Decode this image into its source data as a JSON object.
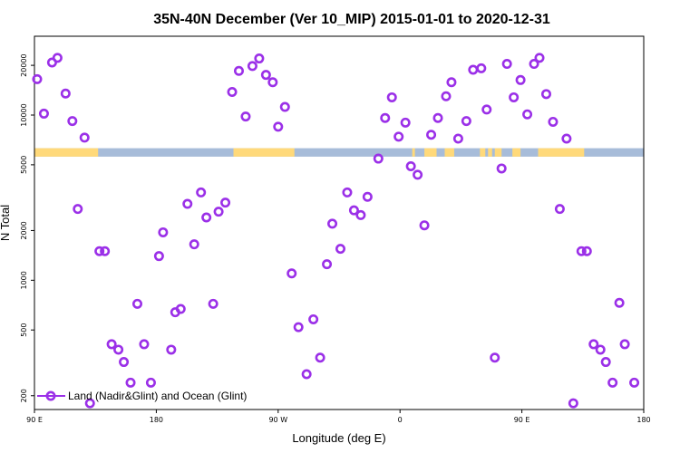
{
  "chart_data": {
    "type": "scatter",
    "title": "35N-40N December (Ver 10_MIP)   2015-01-01 to 2020-12-31",
    "xlabel": "Longitude (deg E)",
    "ylabel": "N Total",
    "xlim": [
      90,
      540
    ],
    "ylim_log": [
      165,
      30000
    ],
    "x_ticks": [
      {
        "value": 90,
        "label": "90 E"
      },
      {
        "value": 180,
        "label": "180"
      },
      {
        "value": 270,
        "label": "90 W"
      },
      {
        "value": 360,
        "label": "0"
      },
      {
        "value": 450,
        "label": "90 E"
      },
      {
        "value": 540,
        "label": "180"
      }
    ],
    "y_ticks": [
      {
        "value": 200,
        "label": "200"
      },
      {
        "value": 500,
        "label": "500"
      },
      {
        "value": 1000,
        "label": "1000"
      },
      {
        "value": 2000,
        "label": "2000"
      },
      {
        "value": 5000,
        "label": "5000"
      },
      {
        "value": 10000,
        "label": "10000"
      },
      {
        "value": 20000,
        "label": "20000"
      }
    ],
    "surface_band": {
      "y_range": [
        5600,
        6300
      ],
      "land_color": "#FFD97A",
      "ocean_color": "#A7BCD9",
      "land_segments": [
        [
          90,
          137
        ],
        [
          237,
          282
        ],
        [
          369,
          371
        ],
        [
          378,
          387
        ],
        [
          393,
          400
        ],
        [
          419,
          423
        ],
        [
          425,
          428
        ],
        [
          430,
          435
        ],
        [
          443,
          449
        ],
        [
          462,
          496
        ]
      ]
    },
    "series": [
      {
        "name": "Land (Nadir&Glint) and Ocean (Glint)",
        "color": "#9B30E8",
        "points": [
          [
            92,
            16500
          ],
          [
            97,
            10200
          ],
          [
            103,
            20800
          ],
          [
            107,
            22200
          ],
          [
            113,
            13500
          ],
          [
            118,
            9200
          ],
          [
            122,
            2700
          ],
          [
            127,
            7300
          ],
          [
            131,
            180
          ],
          [
            138,
            1500
          ],
          [
            142,
            1500
          ],
          [
            147,
            410
          ],
          [
            152,
            380
          ],
          [
            156,
            320
          ],
          [
            161,
            240
          ],
          [
            166,
            720
          ],
          [
            171,
            410
          ],
          [
            176,
            240
          ],
          [
            182,
            1400
          ],
          [
            185,
            1950
          ],
          [
            191,
            380
          ],
          [
            194,
            640
          ],
          [
            198,
            670
          ],
          [
            203,
            2900
          ],
          [
            208,
            1650
          ],
          [
            213,
            3400
          ],
          [
            217,
            2400
          ],
          [
            222,
            720
          ],
          [
            226,
            2600
          ],
          [
            231,
            2950
          ],
          [
            236,
            13800
          ],
          [
            241,
            18500
          ],
          [
            246,
            9800
          ],
          [
            251,
            19800
          ],
          [
            256,
            22000
          ],
          [
            261,
            17500
          ],
          [
            266,
            15800
          ],
          [
            270,
            8500
          ],
          [
            275,
            11200
          ],
          [
            280,
            1100
          ],
          [
            285,
            520
          ],
          [
            291,
            270
          ],
          [
            296,
            580
          ],
          [
            301,
            340
          ],
          [
            306,
            1250
          ],
          [
            310,
            2200
          ],
          [
            316,
            1550
          ],
          [
            321,
            3400
          ],
          [
            326,
            2650
          ],
          [
            331,
            2480
          ],
          [
            336,
            3200
          ],
          [
            344,
            5450
          ],
          [
            349,
            9600
          ],
          [
            354,
            12800
          ],
          [
            359,
            7400
          ],
          [
            364,
            9000
          ],
          [
            368,
            4900
          ],
          [
            373,
            4350
          ],
          [
            378,
            2150
          ],
          [
            383,
            7600
          ],
          [
            388,
            9600
          ],
          [
            394,
            13000
          ],
          [
            398,
            15800
          ],
          [
            403,
            7200
          ],
          [
            409,
            9200
          ],
          [
            414,
            18800
          ],
          [
            420,
            19200
          ],
          [
            424,
            10800
          ],
          [
            430,
            340
          ],
          [
            435,
            4750
          ],
          [
            439,
            20400
          ],
          [
            444,
            12800
          ],
          [
            449,
            16300
          ],
          [
            454,
            10100
          ],
          [
            459,
            20400
          ],
          [
            463,
            22200
          ],
          [
            468,
            13400
          ],
          [
            473,
            9100
          ],
          [
            478,
            2700
          ],
          [
            483,
            7200
          ],
          [
            488,
            180
          ],
          [
            494,
            1500
          ],
          [
            498,
            1500
          ],
          [
            503,
            410
          ],
          [
            508,
            380
          ],
          [
            512,
            320
          ],
          [
            517,
            240
          ],
          [
            522,
            730
          ],
          [
            526,
            410
          ],
          [
            533,
            240
          ]
        ]
      }
    ]
  }
}
